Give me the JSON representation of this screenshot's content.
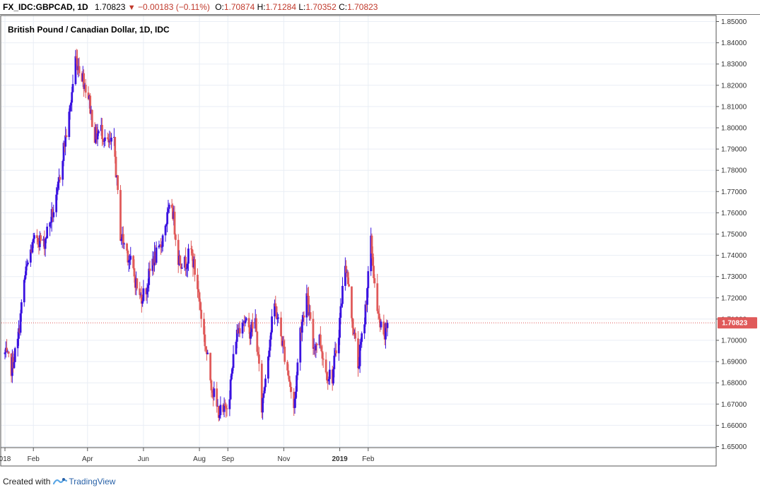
{
  "header": {
    "symbol": "FX_IDC:GBPCAD, 1D",
    "last": "1.70823",
    "change": "−0.00183 (−0.11%)",
    "o_label": "O:",
    "o_value": "1.70874",
    "h_label": "H:",
    "h_value": "1.71284",
    "l_label": "L:",
    "l_value": "1.70352",
    "c_label": "C:",
    "c_value": "1.70823"
  },
  "footer": {
    "prefix": "Created with",
    "brand": "TradingView"
  },
  "chart_data": {
    "type": "candlestick",
    "title": "British Pound / Canadian Dollar, 1D, IDC",
    "ylim": [
      1.65,
      1.85
    ],
    "y_ticks": [
      "1.65000",
      "1.66000",
      "1.67000",
      "1.68000",
      "1.69000",
      "1.70000",
      "1.71000",
      "1.72000",
      "1.73000",
      "1.74000",
      "1.75000",
      "1.76000",
      "1.77000",
      "1.78000",
      "1.79000",
      "1.80000",
      "1.81000",
      "1.82000",
      "1.83000",
      "1.84000",
      "1.85000"
    ],
    "x_ticks": [
      {
        "label": "018",
        "date": "2018-01-01",
        "bold": false
      },
      {
        "label": "Feb",
        "date": "2018-02-01",
        "bold": false
      },
      {
        "label": "Apr",
        "date": "2018-04-01",
        "bold": false
      },
      {
        "label": "Jun",
        "date": "2018-06-01",
        "bold": false
      },
      {
        "label": "Aug",
        "date": "2018-08-01",
        "bold": false
      },
      {
        "label": "Sep",
        "date": "2018-09-01",
        "bold": false
      },
      {
        "label": "Nov",
        "date": "2018-11-01",
        "bold": false
      },
      {
        "label": "2019",
        "date": "2019-01-01",
        "bold": true
      },
      {
        "label": "Feb",
        "date": "2019-02-01",
        "bold": false
      }
    ],
    "last_price_label": "1.70823",
    "colors": {
      "up": "#3a12e0",
      "down": "#e05a5a",
      "last": "#e05a5a",
      "grid": "#e9eef5"
    },
    "series": [
      {
        "date": "2018-01-01",
        "close": 1.6935
      },
      {
        "date": "2018-01-08",
        "close": 1.687
      },
      {
        "date": "2018-01-15",
        "close": 1.699
      },
      {
        "date": "2018-01-22",
        "close": 1.728
      },
      {
        "date": "2018-01-29",
        "close": 1.742
      },
      {
        "date": "2018-02-05",
        "close": 1.749
      },
      {
        "date": "2018-02-12",
        "close": 1.745
      },
      {
        "date": "2018-02-19",
        "close": 1.756
      },
      {
        "date": "2018-02-26",
        "close": 1.765
      },
      {
        "date": "2018-03-05",
        "close": 1.788
      },
      {
        "date": "2018-03-12",
        "close": 1.805
      },
      {
        "date": "2018-03-19",
        "close": 1.833
      },
      {
        "date": "2018-03-26",
        "close": 1.825
      },
      {
        "date": "2018-04-02",
        "close": 1.815
      },
      {
        "date": "2018-04-09",
        "close": 1.796
      },
      {
        "date": "2018-04-16",
        "close": 1.799
      },
      {
        "date": "2018-04-23",
        "close": 1.792
      },
      {
        "date": "2018-04-30",
        "close": 1.792
      },
      {
        "date": "2018-05-07",
        "close": 1.75
      },
      {
        "date": "2018-05-14",
        "close": 1.742
      },
      {
        "date": "2018-05-21",
        "close": 1.732
      },
      {
        "date": "2018-05-28",
        "close": 1.72
      },
      {
        "date": "2018-06-04",
        "close": 1.724
      },
      {
        "date": "2018-06-11",
        "close": 1.738
      },
      {
        "date": "2018-06-18",
        "close": 1.741
      },
      {
        "date": "2018-06-25",
        "close": 1.755
      },
      {
        "date": "2018-07-02",
        "close": 1.764
      },
      {
        "date": "2018-07-09",
        "close": 1.739
      },
      {
        "date": "2018-07-16",
        "close": 1.736
      },
      {
        "date": "2018-07-23",
        "close": 1.742
      },
      {
        "date": "2018-07-30",
        "close": 1.725
      },
      {
        "date": "2018-08-06",
        "close": 1.702
      },
      {
        "date": "2018-08-13",
        "close": 1.682
      },
      {
        "date": "2018-08-20",
        "close": 1.668
      },
      {
        "date": "2018-08-27",
        "close": 1.665
      },
      {
        "date": "2018-09-03",
        "close": 1.676
      },
      {
        "date": "2018-09-10",
        "close": 1.702
      },
      {
        "date": "2018-09-17",
        "close": 1.711
      },
      {
        "date": "2018-09-24",
        "close": 1.704
      },
      {
        "date": "2018-10-01",
        "close": 1.709
      },
      {
        "date": "2018-10-08",
        "close": 1.668
      },
      {
        "date": "2018-10-15",
        "close": 1.695
      },
      {
        "date": "2018-10-22",
        "close": 1.717
      },
      {
        "date": "2018-10-29",
        "close": 1.702
      },
      {
        "date": "2018-11-05",
        "close": 1.687
      },
      {
        "date": "2018-11-12",
        "close": 1.667
      },
      {
        "date": "2018-11-19",
        "close": 1.705
      },
      {
        "date": "2018-11-26",
        "close": 1.721
      },
      {
        "date": "2018-12-03",
        "close": 1.697
      },
      {
        "date": "2018-12-10",
        "close": 1.701
      },
      {
        "date": "2018-12-17",
        "close": 1.685
      },
      {
        "date": "2018-12-24",
        "close": 1.683
      },
      {
        "date": "2018-12-31",
        "close": 1.705
      },
      {
        "date": "2019-01-07",
        "close": 1.738
      },
      {
        "date": "2019-01-14",
        "close": 1.712
      },
      {
        "date": "2019-01-21",
        "close": 1.688
      },
      {
        "date": "2019-01-28",
        "close": 1.71
      },
      {
        "date": "2019-02-04",
        "close": 1.746
      },
      {
        "date": "2019-02-11",
        "close": 1.712
      },
      {
        "date": "2019-02-18",
        "close": 1.7
      },
      {
        "date": "2019-02-22",
        "close": 1.7082
      }
    ]
  }
}
